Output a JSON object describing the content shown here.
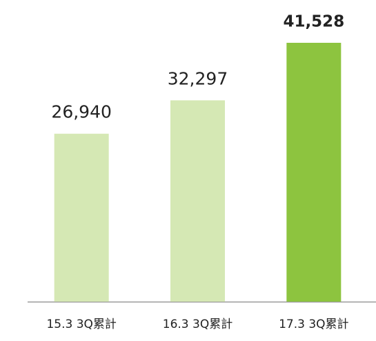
{
  "chart_data": {
    "type": "bar",
    "categories": [
      "15.3 3Q累計",
      "16.3 3Q累計",
      "17.3 3Q累計"
    ],
    "values": [
      26940,
      32297,
      41528
    ],
    "value_labels": [
      "26,940",
      "32,297",
      "41,528"
    ],
    "colors": [
      "#d5e8b4",
      "#d5e8b4",
      "#8dc43f"
    ]
  }
}
